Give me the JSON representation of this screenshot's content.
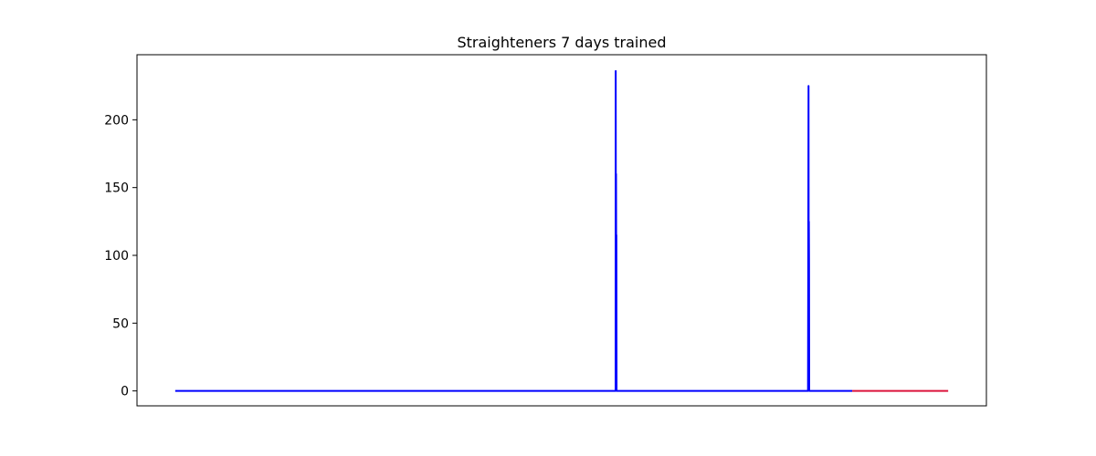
{
  "chart_data": {
    "type": "line",
    "title": "Straighteners 7 days trained",
    "xlabel": "",
    "ylabel": "",
    "x_ticks_visible": false,
    "xlim": [
      0,
      1000
    ],
    "ylim": [
      -11,
      248
    ],
    "yticks": [
      0,
      50,
      100,
      150,
      200
    ],
    "ytick_labels": [
      "0",
      "50",
      "100",
      "150",
      "200"
    ],
    "grid": false,
    "legend": "none",
    "series": [
      {
        "color": "#0000ff",
        "points": [
          [
            45,
            0
          ],
          [
            563.5,
            0
          ],
          [
            563.6,
            236
          ],
          [
            563.8,
            70
          ],
          [
            564.0,
            160
          ],
          [
            564.2,
            75
          ],
          [
            564.4,
            115
          ],
          [
            564.6,
            0
          ],
          [
            790,
            0
          ],
          [
            790.6,
            225
          ],
          [
            790.8,
            87
          ],
          [
            791.0,
            125
          ],
          [
            791.2,
            95
          ],
          [
            791.4,
            0
          ],
          [
            842,
            0
          ]
        ]
      },
      {
        "color": "#dc143c",
        "points": [
          [
            842,
            0
          ],
          [
            955,
            0
          ]
        ]
      }
    ]
  }
}
